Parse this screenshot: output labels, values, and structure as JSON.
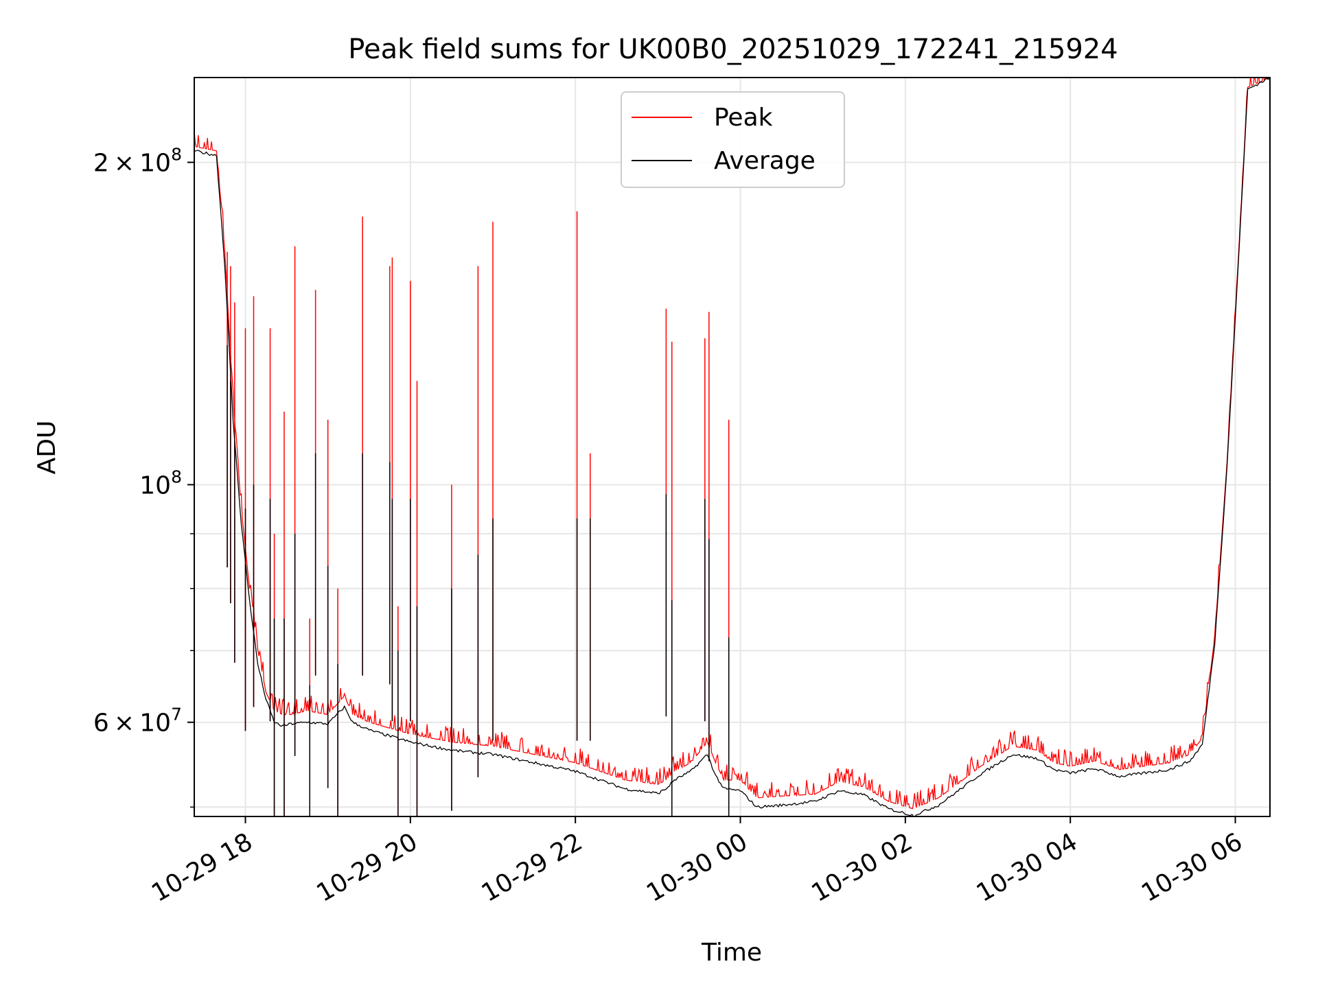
{
  "chart_data": {
    "type": "line",
    "title": "Peak field sums for UK00B0_20251029_172241_215924",
    "xlabel": "Time",
    "ylabel": "ADU",
    "yscale": "log",
    "ylim": [
      49000000,
      240000000
    ],
    "x_unit": "hours since 2025-10-29 00:00",
    "xlim": [
      17.38,
      30.42
    ],
    "x_ticks": [
      {
        "value": 18,
        "label": "10-29 18"
      },
      {
        "value": 20,
        "label": "10-29 20"
      },
      {
        "value": 22,
        "label": "10-29 22"
      },
      {
        "value": 24,
        "label": "10-30 00"
      },
      {
        "value": 26,
        "label": "10-30 02"
      },
      {
        "value": 28,
        "label": "10-30 04"
      },
      {
        "value": 30,
        "label": "10-30 06"
      }
    ],
    "y_ticks": [
      {
        "value": 60000000,
        "mant": "6",
        "exp": "7"
      },
      {
        "value": 100000000,
        "mant": "",
        "exp": "8"
      },
      {
        "value": 200000000,
        "mant": "2",
        "exp": "8"
      }
    ],
    "y_minor_ticks": [
      50000000,
      70000000,
      80000000,
      90000000
    ],
    "grid": true,
    "legend_position": "top-center",
    "colors": {
      "peak": "#ff0000",
      "average": "#000000",
      "grid": "#e6e6e6"
    },
    "series": [
      {
        "name": "Peak",
        "color": "#ff0000",
        "x": [
          17.38,
          17.65,
          17.75,
          17.85,
          17.95,
          18.05,
          18.15,
          18.25,
          18.35,
          18.45,
          18.55,
          18.75,
          19.0,
          19.2,
          19.3,
          19.5,
          20.0,
          20.5,
          21.0,
          21.5,
          22.0,
          22.3,
          22.6,
          23.0,
          23.1,
          23.2,
          23.4,
          23.6,
          23.7,
          23.8,
          24.0,
          24.2,
          24.5,
          24.9,
          25.2,
          25.5,
          25.8,
          26.1,
          26.4,
          26.6,
          26.9,
          27.3,
          27.6,
          27.8,
          28.0,
          28.3,
          28.6,
          28.9,
          29.2,
          29.45,
          29.6,
          29.75,
          29.9,
          30.05,
          30.15,
          30.42
        ],
        "y": [
          207000000,
          205000000,
          165000000,
          120000000,
          95000000,
          80000000,
          70000000,
          64000000,
          61500000,
          61000000,
          61000000,
          61500000,
          61000000,
          63500000,
          61000000,
          60000000,
          58500000,
          57500000,
          57000000,
          56000000,
          55000000,
          54000000,
          53000000,
          52500000,
          53000000,
          54000000,
          55000000,
          57500000,
          55000000,
          53000000,
          53000000,
          51000000,
          51200000,
          51400000,
          52800000,
          52200000,
          50600000,
          49800000,
          51000000,
          52300000,
          54500000,
          57000000,
          56500000,
          55000000,
          54600000,
          55200000,
          54200000,
          54600000,
          55000000,
          56000000,
          58000000,
          72000000,
          105000000,
          170000000,
          235000000,
          240000000
        ]
      },
      {
        "name": "Average",
        "color": "#000000",
        "x": [
          17.38,
          17.65,
          17.75,
          17.85,
          17.95,
          18.05,
          18.15,
          18.25,
          18.35,
          18.45,
          18.55,
          18.75,
          19.0,
          19.2,
          19.3,
          19.5,
          20.0,
          20.5,
          21.0,
          21.5,
          22.0,
          22.3,
          22.6,
          23.0,
          23.1,
          23.2,
          23.4,
          23.6,
          23.7,
          23.8,
          24.0,
          24.2,
          24.5,
          24.9,
          25.2,
          25.5,
          25.8,
          26.1,
          26.4,
          26.6,
          26.9,
          27.3,
          27.6,
          27.8,
          28.0,
          28.3,
          28.6,
          28.9,
          29.2,
          29.45,
          29.6,
          29.75,
          29.9,
          30.05,
          30.15,
          30.42
        ],
        "y": [
          205000000,
          203000000,
          160000000,
          115000000,
          92000000,
          78000000,
          68000000,
          63000000,
          60000000,
          59500000,
          59800000,
          60000000,
          59800000,
          62000000,
          60000000,
          59000000,
          57500000,
          56500000,
          56000000,
          55000000,
          54000000,
          53000000,
          52000000,
          51500000,
          52000000,
          53000000,
          54000000,
          56000000,
          53500000,
          52000000,
          51800000,
          50000000,
          50200000,
          50600000,
          51800000,
          51300000,
          49800000,
          49100000,
          50200000,
          51500000,
          53600000,
          56000000,
          55500000,
          54200000,
          53800000,
          54300000,
          53400000,
          53800000,
          54200000,
          55200000,
          57200000,
          71000000,
          104000000,
          168000000,
          234000000,
          240000000
        ]
      }
    ],
    "peak_spikes": [
      {
        "x": 17.78,
        "peak": 165000000,
        "avg": 135000000
      },
      {
        "x": 17.82,
        "peak": 160000000,
        "avg": 125000000
      },
      {
        "x": 17.87,
        "peak": 148000000,
        "avg": 110000000
      },
      {
        "x": 18.0,
        "peak": 140000000,
        "avg": 95000000
      },
      {
        "x": 18.1,
        "peak": 150000000,
        "avg": 100000000
      },
      {
        "x": 18.3,
        "peak": 140000000,
        "avg": 97000000
      },
      {
        "x": 18.35,
        "peak": 90000000,
        "avg": 75000000
      },
      {
        "x": 18.47,
        "peak": 117000000,
        "avg": 75000000
      },
      {
        "x": 18.6,
        "peak": 167000000,
        "avg": 90000000
      },
      {
        "x": 18.78,
        "peak": 75000000,
        "avg": 65000000
      },
      {
        "x": 18.85,
        "peak": 152000000,
        "avg": 107000000
      },
      {
        "x": 19.0,
        "peak": 115000000,
        "avg": 84000000
      },
      {
        "x": 19.12,
        "peak": 80000000,
        "avg": 68000000
      },
      {
        "x": 19.42,
        "peak": 178000000,
        "avg": 107000000
      },
      {
        "x": 19.75,
        "peak": 160000000,
        "avg": 105000000
      },
      {
        "x": 19.78,
        "peak": 163000000,
        "avg": 97000000
      },
      {
        "x": 19.85,
        "peak": 77000000,
        "avg": 70000000
      },
      {
        "x": 20.0,
        "peak": 155000000,
        "avg": 97000000
      },
      {
        "x": 20.08,
        "peak": 125000000,
        "avg": 77000000
      },
      {
        "x": 20.5,
        "peak": 100000000,
        "avg": 80000000
      },
      {
        "x": 20.82,
        "peak": 160000000,
        "avg": 86000000
      },
      {
        "x": 21.0,
        "peak": 176000000,
        "avg": 93000000
      },
      {
        "x": 22.02,
        "peak": 180000000,
        "avg": 93000000
      },
      {
        "x": 22.18,
        "peak": 107000000,
        "avg": 93000000
      },
      {
        "x": 23.1,
        "peak": 146000000,
        "avg": 98000000
      },
      {
        "x": 23.17,
        "peak": 136000000,
        "avg": 78000000
      },
      {
        "x": 23.57,
        "peak": 137000000,
        "avg": 97000000
      },
      {
        "x": 23.62,
        "peak": 145000000,
        "avg": 89000000
      },
      {
        "x": 23.86,
        "peak": 115000000,
        "avg": 72000000
      }
    ],
    "legend": [
      {
        "label": "Peak",
        "color": "#ff0000"
      },
      {
        "label": "Average",
        "color": "#000000"
      }
    ]
  }
}
